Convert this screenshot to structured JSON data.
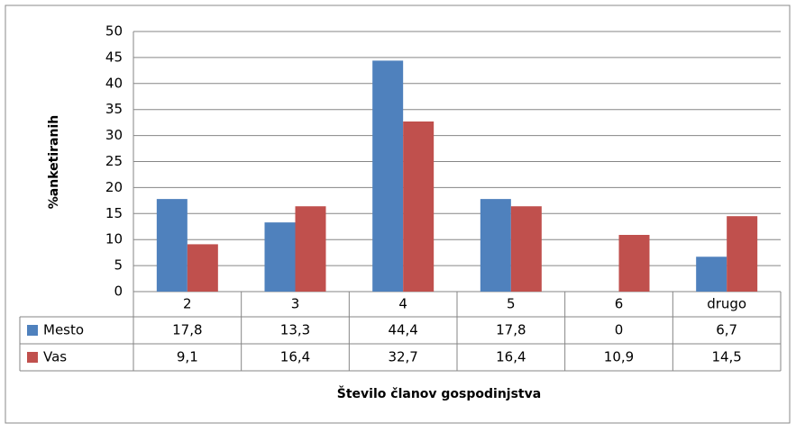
{
  "chart_data": {
    "type": "bar",
    "y_label": "%anketiranih",
    "x_label": "Število članov gospodinjstva",
    "categories": [
      "2",
      "3",
      "4",
      "5",
      "6",
      "drugo"
    ],
    "series": [
      {
        "name": "Mesto",
        "color": "#4f81bd",
        "values": [
          17.8,
          13.3,
          44.4,
          17.8,
          0,
          6.7
        ],
        "value_labels": [
          "17,8",
          "13,3",
          "44,4",
          "17,8",
          "0",
          "6,7"
        ]
      },
      {
        "name": "Vas",
        "color": "#c0504d",
        "values": [
          9.1,
          16.4,
          32.7,
          16.4,
          10.9,
          14.5
        ],
        "value_labels": [
          "9,1",
          "16,4",
          "32,7",
          "16,4",
          "10,9",
          "14,5"
        ]
      }
    ],
    "ylim": [
      0,
      50
    ],
    "yticks": [
      0,
      5,
      10,
      15,
      20,
      25,
      30,
      35,
      40,
      45,
      50
    ],
    "grid": true
  }
}
